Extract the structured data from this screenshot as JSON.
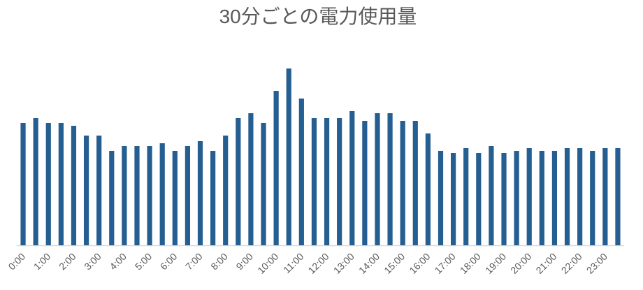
{
  "chart_data": {
    "type": "bar",
    "title": "30分ごとの電力使用量",
    "categories": [
      "0:00",
      null,
      "1:00",
      null,
      "2:00",
      null,
      "3:00",
      null,
      "4:00",
      null,
      "5:00",
      null,
      "6:00",
      null,
      "7:00",
      null,
      "8:00",
      null,
      "9:00",
      null,
      "10:00",
      null,
      "11:00",
      null,
      "12:00",
      null,
      "13:00",
      null,
      "14:00",
      null,
      "15:00",
      null,
      "16:00",
      null,
      "17:00",
      null,
      "18:00",
      null,
      "19:00",
      null,
      "20:00",
      null,
      "21:00",
      null,
      "22:00",
      null,
      "23:00",
      null
    ],
    "values": [
      175,
      182,
      175,
      175,
      171,
      157,
      157,
      135,
      142,
      142,
      142,
      146,
      135,
      142,
      149,
      135,
      157,
      182,
      189,
      175,
      221,
      253,
      210,
      182,
      182,
      182,
      192,
      178,
      189,
      189,
      178,
      178,
      160,
      135,
      132,
      139,
      132,
      142,
      132,
      135,
      139,
      135,
      135,
      139,
      139,
      135,
      139,
      139
    ],
    "color": "#255e91",
    "ylim": [
      0,
      260
    ]
  }
}
